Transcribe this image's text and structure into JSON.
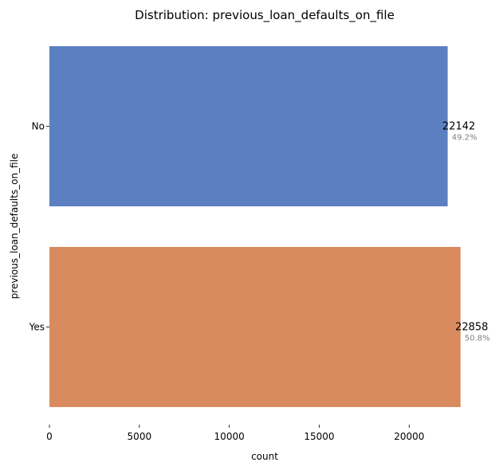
{
  "chart_data": {
    "type": "bar",
    "orientation": "horizontal",
    "title": "Distribution: previous_loan_defaults_on_file",
    "xlabel": "count",
    "ylabel": "previous_loan_defaults_on_file",
    "categories": [
      "No",
      "Yes"
    ],
    "values": [
      22142,
      22858
    ],
    "value_labels": [
      "22142",
      "22858"
    ],
    "percent_labels": [
      "49.2%",
      "50.8%"
    ],
    "colors": [
      "#5b7fc1",
      "#d98b5f"
    ],
    "xlim": [
      0,
      23400
    ],
    "xticks": [
      0,
      5000,
      10000,
      15000,
      20000
    ],
    "xtick_labels": [
      "0",
      "5000",
      "10000",
      "15000",
      "20000"
    ],
    "grid": false,
    "legend": "none"
  }
}
